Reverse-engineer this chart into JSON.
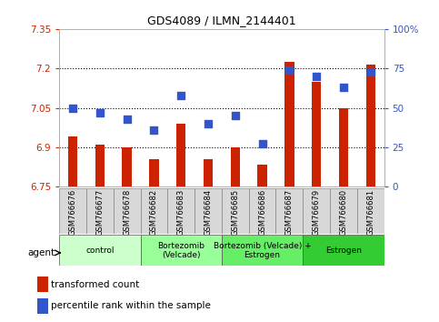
{
  "title": "GDS4089 / ILMN_2144401",
  "samples": [
    "GSM766676",
    "GSM766677",
    "GSM766678",
    "GSM766682",
    "GSM766683",
    "GSM766684",
    "GSM766685",
    "GSM766686",
    "GSM766687",
    "GSM766679",
    "GSM766680",
    "GSM766681"
  ],
  "transformed_count": [
    6.94,
    6.91,
    6.9,
    6.855,
    6.99,
    6.855,
    6.9,
    6.835,
    7.225,
    7.15,
    7.05,
    7.215
  ],
  "percentile_rank": [
    50,
    47,
    43,
    36,
    58,
    40,
    45,
    27,
    74,
    70,
    63,
    73
  ],
  "ylim_left": [
    6.75,
    7.35
  ],
  "ylim_right": [
    0,
    100
  ],
  "yticks_left": [
    6.75,
    6.9,
    7.05,
    7.2,
    7.35
  ],
  "yticks_right": [
    0,
    25,
    50,
    75,
    100
  ],
  "ytick_labels_left": [
    "6.75",
    "6.9",
    "7.05",
    "7.2",
    "7.35"
  ],
  "ytick_labels_right": [
    "0",
    "25",
    "50",
    "75",
    "100%"
  ],
  "hlines": [
    6.9,
    7.05,
    7.2
  ],
  "bar_color": "#cc2200",
  "dot_color": "#3355cc",
  "agent_groups": [
    {
      "label": "control",
      "start": 0,
      "end": 3,
      "color": "#ccffcc"
    },
    {
      "label": "Bortezomib\n(Velcade)",
      "start": 3,
      "end": 6,
      "color": "#99ff99"
    },
    {
      "label": "Bortezomib (Velcade) +\nEstrogen",
      "start": 6,
      "end": 9,
      "color": "#66ee66"
    },
    {
      "label": "Estrogen",
      "start": 9,
      "end": 12,
      "color": "#33cc33"
    }
  ],
  "agent_label": "agent",
  "legend_bar_label": "transformed count",
  "legend_dot_label": "percentile rank within the sample",
  "bar_width": 0.35,
  "dot_size": 35,
  "tick_color_left": "#cc2200",
  "tick_color_right": "#3355cc",
  "background_color": "#ffffff",
  "plot_bg_color": "#ffffff",
  "grid_color": "#000000",
  "cell_color": "#d8d8d8"
}
